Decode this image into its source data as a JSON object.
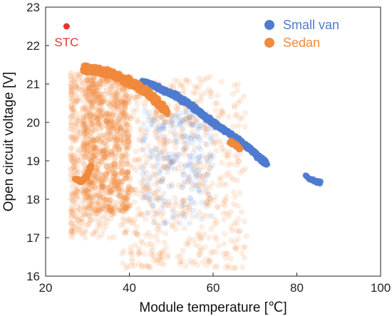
{
  "chart_data": {
    "type": "scatter",
    "xlabel": "Module temperature [℃]",
    "ylabel": "Open circuit voltage [V]",
    "xlim": [
      20,
      100
    ],
    "ylim": [
      16,
      23
    ],
    "x_ticks": [
      20,
      40,
      60,
      80,
      100
    ],
    "y_ticks": [
      16,
      17,
      18,
      19,
      20,
      21,
      22,
      23
    ],
    "grid": false,
    "legend_position": "top-right",
    "annotation": {
      "text": "STC",
      "x": 25,
      "y": 22.5,
      "color": "#e8322f"
    },
    "colors": {
      "small_van": "#4f7bd0",
      "sedan": "#f08a3c",
      "stc": "#e8322f"
    },
    "series": [
      {
        "name": "Small van",
        "color": "#4f7bd0",
        "dense_trend": [
          [
            43,
            21.05
          ],
          [
            46,
            20.95
          ],
          [
            50,
            20.75
          ],
          [
            54,
            20.5
          ],
          [
            58,
            20.15
          ],
          [
            62,
            19.85
          ],
          [
            66,
            19.55
          ],
          [
            70,
            19.2
          ],
          [
            73,
            18.9
          ]
        ],
        "dense_cluster_2": [
          [
            82,
            18.6
          ],
          [
            84,
            18.5
          ],
          [
            85.5,
            18.42
          ]
        ],
        "scatter_region": {
          "x": [
            43,
            60
          ],
          "y": [
            17.3,
            20.3
          ]
        }
      },
      {
        "name": "Sedan",
        "color": "#f08a3c",
        "dense_trend": [
          [
            29,
            21.4
          ],
          [
            32,
            21.35
          ],
          [
            35,
            21.3
          ],
          [
            38,
            21.15
          ],
          [
            41,
            21.0
          ],
          [
            44,
            20.8
          ],
          [
            47,
            20.5
          ],
          [
            49,
            20.3
          ]
        ],
        "dense_cluster_2": [
          [
            27,
            18.55
          ],
          [
            28.5,
            18.45
          ],
          [
            30,
            18.6
          ],
          [
            31,
            18.9
          ]
        ],
        "dense_cluster_3": [
          [
            64,
            19.5
          ],
          [
            65.5,
            19.4
          ],
          [
            66.5,
            19.3
          ]
        ],
        "scatter_region": {
          "x": [
            26,
            68
          ],
          "y": [
            16.0,
            21.2
          ]
        }
      }
    ]
  },
  "legend": {
    "items": [
      {
        "label": "Small van",
        "color": "#4f7bd0"
      },
      {
        "label": "Sedan",
        "color": "#f08a3c"
      }
    ]
  }
}
